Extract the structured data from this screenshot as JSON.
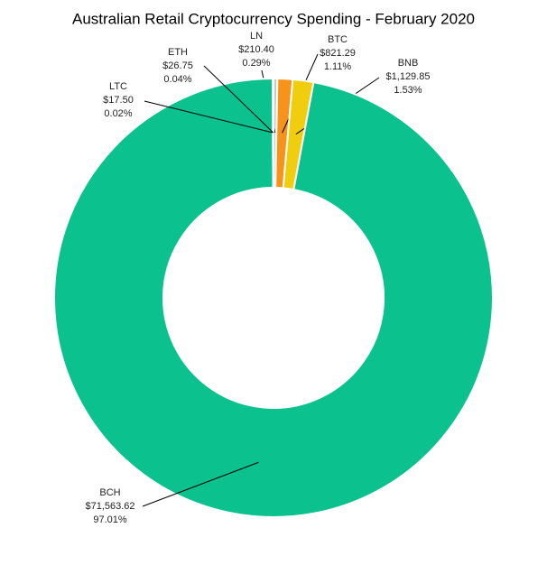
{
  "chart_data": {
    "type": "donut",
    "title": "Australian Retail Cryptocurrency Spending - February 2020",
    "categories": [
      "LN",
      "BTC",
      "BNB",
      "BCH",
      "LTC",
      "ETH"
    ],
    "values": [
      210.4,
      821.29,
      1129.85,
      71563.62,
      17.5,
      26.75
    ],
    "value_labels": [
      "$210.40",
      "$821.29",
      "$1,129.85",
      "$71,563.62",
      "$17.50",
      "$26.75"
    ],
    "percentage_labels": [
      "0.29%",
      "1.11%",
      "1.53%",
      "97.01%",
      "0.02%",
      "0.04%"
    ],
    "colors": [
      "#c8c8c8",
      "#f7931a",
      "#f0cd0f",
      "#0bc18e",
      "#b8b8b8",
      "#6b6f93"
    ]
  }
}
